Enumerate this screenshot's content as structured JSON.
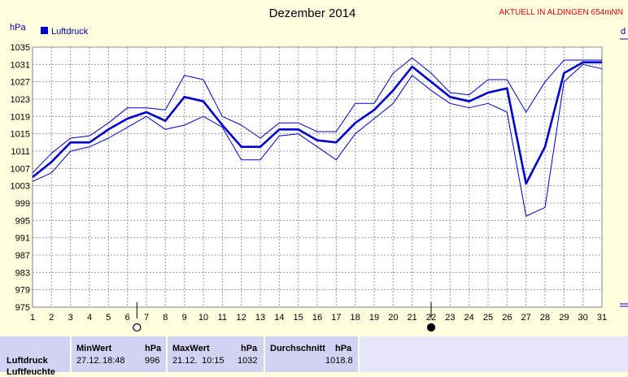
{
  "chart_data": {
    "type": "line",
    "title": "Dezember 2014",
    "status_text": "AKTUELL IN ALDINGEN 654mNN",
    "ylabel": "hPa",
    "right_edge_label": "d",
    "ylim": [
      975,
      1035
    ],
    "yticks": [
      975,
      979,
      983,
      987,
      991,
      995,
      999,
      1003,
      1007,
      1011,
      1015,
      1019,
      1023,
      1027,
      1031,
      1035
    ],
    "xlim": [
      1,
      31
    ],
    "x": [
      1,
      2,
      3,
      4,
      5,
      6,
      7,
      8,
      9,
      10,
      11,
      12,
      13,
      14,
      15,
      16,
      17,
      18,
      19,
      20,
      21,
      22,
      23,
      24,
      25,
      26,
      27,
      28,
      29,
      30,
      31
    ],
    "grid": true,
    "legend": {
      "position": "top-left",
      "label": "Luftdruck",
      "color": "#0000cc"
    },
    "series": [
      {
        "name": "Luftdruck",
        "role": "mean",
        "color": "#0000cc",
        "values": [
          1005,
          1008.5,
          1013,
          1013,
          1016,
          1018.5,
          1020,
          1018,
          1023.5,
          1022.5,
          1017,
          1012,
          1012,
          1016,
          1016,
          1013.5,
          1013,
          1017.5,
          1020.5,
          1025,
          1030.5,
          1027,
          1023.5,
          1022.5,
          1024.5,
          1025.5,
          1003.5,
          1012,
          1029,
          1031.5,
          1031.5
        ]
      },
      {
        "role": "max",
        "color": "#0000cc",
        "values": [
          1006,
          1010.5,
          1014,
          1014.5,
          1017.5,
          1021,
          1021,
          1020.5,
          1028.5,
          1027.5,
          1019,
          1017,
          1014,
          1017.5,
          1017.5,
          1015.5,
          1015.5,
          1022,
          1022,
          1029,
          1032.5,
          1029,
          1024.5,
          1024,
          1027.5,
          1027.5,
          1020,
          1027,
          1032,
          1032,
          1032
        ]
      },
      {
        "role": "min",
        "color": "#0000cc",
        "values": [
          1004,
          1006,
          1011,
          1012,
          1014,
          1016.5,
          1019,
          1016,
          1017,
          1019,
          1016.5,
          1009,
          1009,
          1014.5,
          1015,
          1012,
          1009,
          1015,
          1018.5,
          1022,
          1028.5,
          1025,
          1022,
          1021,
          1022,
          1020,
          996,
          998,
          1027,
          1031,
          1030
        ]
      }
    ],
    "markers": [
      {
        "day": 6.5,
        "type": "open-circle-icon"
      },
      {
        "day": 22,
        "type": "filled-circle-icon"
      }
    ]
  },
  "stats": {
    "row_label": "Luftdruck",
    "row_label_2": "Luftfeuchte",
    "min": {
      "header": "MinWert",
      "unit": "hPa",
      "date": "27.12.",
      "time": "18:48",
      "value": "996"
    },
    "max": {
      "header": "MaxWert",
      "unit": "hPa",
      "date": "21.12.",
      "time": "10:15",
      "value": "1032"
    },
    "avg": {
      "header": "Durchschnitt",
      "unit": "hPa",
      "value": "1018.8"
    }
  }
}
